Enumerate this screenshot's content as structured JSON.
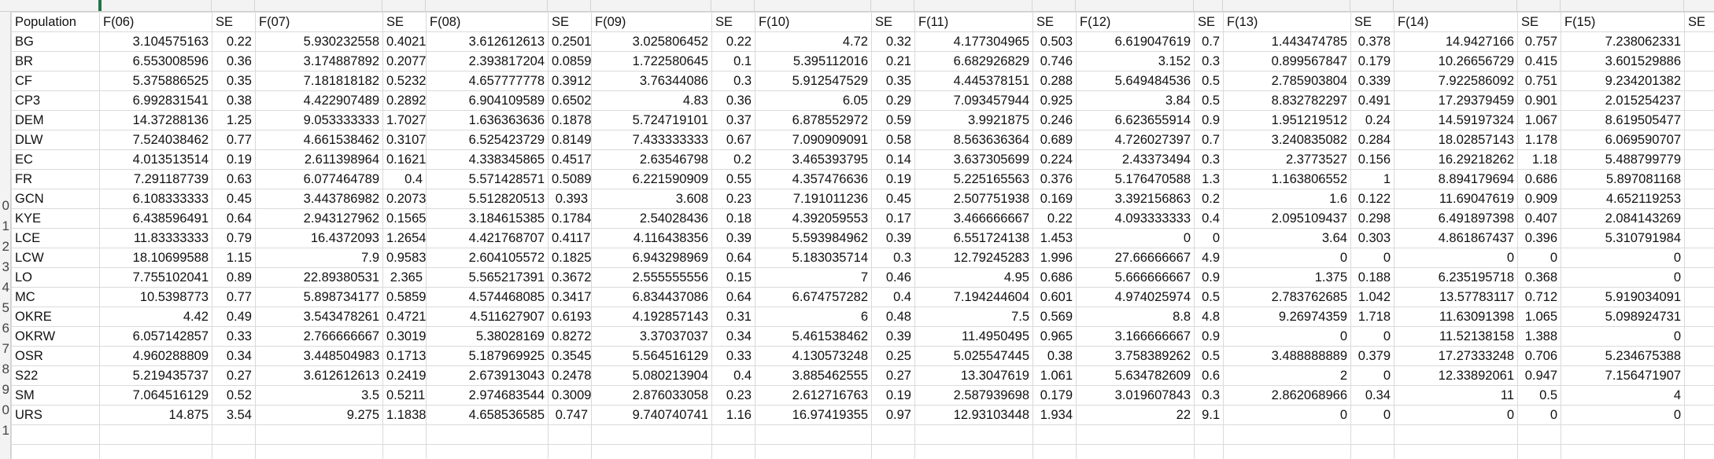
{
  "sheet": {
    "headers": [
      "Population",
      "F(06)",
      "SE",
      "F(07)",
      "SE",
      "F(08)",
      "SE",
      "F(09)",
      "SE",
      "F(10)",
      "SE",
      "F(11)",
      "SE",
      "F(12)",
      "SE",
      "F(13)",
      "SE",
      "F(14)",
      "SE",
      "F(15)",
      "SE"
    ],
    "row_numbers": [
      "",
      "",
      "",
      "",
      "",
      "",
      "",
      "",
      "",
      "0",
      "1",
      "2",
      "3",
      "4",
      "5",
      "6",
      "7",
      "8",
      "9",
      "0",
      "1",
      "",
      ""
    ],
    "rows": [
      [
        "BG",
        "3.104575163",
        "0.22",
        "5.930232558",
        "0.4021",
        "3.612612613",
        "0.2501",
        "3.025806452",
        "0.22",
        "4.72",
        "0.32",
        "4.177304965",
        "0.503",
        "6.619047619",
        "0.7",
        "1.443474785",
        "0.378",
        "14.9427166",
        "0.757",
        "7.238062331",
        ""
      ],
      [
        "BR",
        "6.553008596",
        "0.36",
        "3.174887892",
        "0.2077",
        "2.393817204",
        "0.0859",
        "1.722580645",
        "0.1",
        "5.395112016",
        "0.21",
        "6.682926829",
        "0.746",
        "3.152",
        "0.3",
        "0.899567847",
        "0.179",
        "10.26656729",
        "0.415",
        "3.601529886",
        ""
      ],
      [
        "CF",
        "5.375886525",
        "0.35",
        "7.181818182",
        "0.5232",
        "4.657777778",
        "0.3912",
        "3.76344086",
        "0.3",
        "5.912547529",
        "0.35",
        "4.445378151",
        "0.288",
        "5.649484536",
        "0.5",
        "2.785903804",
        "0.339",
        "7.922586092",
        "0.751",
        "9.234201382",
        ""
      ],
      [
        "CP3",
        "6.992831541",
        "0.38",
        "4.422907489",
        "0.2892",
        "6.904109589",
        "0.6502",
        "4.83",
        "0.36",
        "6.05",
        "0.29",
        "7.093457944",
        "0.925",
        "3.84",
        "0.5",
        "8.832782297",
        "0.491",
        "17.29379459",
        "0.901",
        "2.015254237",
        ""
      ],
      [
        "DEM",
        "14.37288136",
        "1.25",
        "9.053333333",
        "1.7027",
        "1.636363636",
        "0.1878",
        "5.724719101",
        "0.37",
        "6.878552972",
        "0.59",
        "3.9921875",
        "0.246",
        "6.623655914",
        "0.9",
        "1.951219512",
        "0.24",
        "14.59197324",
        "1.067",
        "8.619505477",
        ""
      ],
      [
        "DLW",
        "7.524038462",
        "0.77",
        "4.661538462",
        "0.3107",
        "6.525423729",
        "0.8149",
        "7.433333333",
        "0.67",
        "7.090909091",
        "0.58",
        "8.563636364",
        "0.689",
        "4.726027397",
        "0.7",
        "3.240835082",
        "0.284",
        "18.02857143",
        "1.178",
        "6.069590707",
        ""
      ],
      [
        "EC",
        "4.013513514",
        "0.19",
        "2.611398964",
        "0.1621",
        "4.338345865",
        "0.4517",
        "2.63546798",
        "0.2",
        "3.465393795",
        "0.14",
        "3.637305699",
        "0.224",
        "2.43373494",
        "0.3",
        "2.3773527",
        "0.156",
        "16.29218262",
        "1.18",
        "5.488799779",
        ""
      ],
      [
        "FR",
        "7.291187739",
        "0.63",
        "6.077464789",
        "0.4",
        "5.571428571",
        "0.5089",
        "6.221590909",
        "0.55",
        "4.357476636",
        "0.19",
        "5.225165563",
        "0.376",
        "5.176470588",
        "1.3",
        "1.163806552",
        "1",
        "8.894179694",
        "0.686",
        "5.897081168",
        ""
      ],
      [
        "GCN",
        "6.108333333",
        "0.45",
        "3.443786982",
        "0.2073",
        "5.512820513",
        "0.393",
        "3.608",
        "0.23",
        "7.191011236",
        "0.45",
        "2.507751938",
        "0.169",
        "3.392156863",
        "0.2",
        "1.6",
        "0.122",
        "11.69047619",
        "0.909",
        "4.652119253",
        ""
      ],
      [
        "KYE",
        "6.438596491",
        "0.64",
        "2.943127962",
        "0.1565",
        "3.184615385",
        "0.1784",
        "2.54028436",
        "0.18",
        "4.392059553",
        "0.17",
        "3.466666667",
        "0.22",
        "4.093333333",
        "0.4",
        "2.095109437",
        "0.298",
        "6.491897398",
        "0.407",
        "2.084143269",
        ""
      ],
      [
        "LCE",
        "11.83333333",
        "0.79",
        "16.4372093",
        "1.2654",
        "4.421768707",
        "0.4117",
        "4.116438356",
        "0.39",
        "5.593984962",
        "0.39",
        "6.551724138",
        "1.453",
        "0",
        "0",
        "3.64",
        "0.303",
        "4.861867437",
        "0.396",
        "5.310791984",
        ""
      ],
      [
        "LCW",
        "18.10699588",
        "1.15",
        "7.9",
        "0.9583",
        "2.604105572",
        "0.1825",
        "6.943298969",
        "0.64",
        "5.183035714",
        "0.3",
        "12.79245283",
        "1.996",
        "27.66666667",
        "4.9",
        "0",
        "0",
        "0",
        "0",
        "0",
        ""
      ],
      [
        "LO",
        "7.755102041",
        "0.89",
        "22.89380531",
        "2.365",
        "5.565217391",
        "0.3672",
        "2.555555556",
        "0.15",
        "7",
        "0.46",
        "4.95",
        "0.686",
        "5.666666667",
        "0.9",
        "1.375",
        "0.188",
        "6.235195718",
        "0.368",
        "0",
        ""
      ],
      [
        "MC",
        "10.5398773",
        "0.77",
        "5.898734177",
        "0.5859",
        "4.574468085",
        "0.3417",
        "6.834437086",
        "0.64",
        "6.674757282",
        "0.4",
        "7.194244604",
        "0.601",
        "4.974025974",
        "0.5",
        "2.783762685",
        "1.042",
        "13.57783117",
        "0.712",
        "5.919034091",
        ""
      ],
      [
        "OKRE",
        "4.42",
        "0.49",
        "3.543478261",
        "0.4721",
        "4.511627907",
        "0.6193",
        "4.192857143",
        "0.31",
        "6",
        "0.48",
        "7.5",
        "0.569",
        "8.8",
        "4.8",
        "9.26974359",
        "1.718",
        "11.63091398",
        "1.065",
        "5.098924731",
        ""
      ],
      [
        "OKRW",
        "6.057142857",
        "0.33",
        "2.766666667",
        "0.3019",
        "5.38028169",
        "0.8272",
        "3.37037037",
        "0.34",
        "5.461538462",
        "0.39",
        "11.4950495",
        "0.965",
        "3.166666667",
        "0.9",
        "0",
        "0",
        "11.52138158",
        "1.388",
        "0",
        ""
      ],
      [
        "OSR",
        "4.960288809",
        "0.34",
        "3.448504983",
        "0.1713",
        "5.187969925",
        "0.3545",
        "5.564516129",
        "0.33",
        "4.130573248",
        "0.25",
        "5.025547445",
        "0.38",
        "3.758389262",
        "0.5",
        "3.488888889",
        "0.379",
        "17.27333248",
        "0.706",
        "5.234675388",
        ""
      ],
      [
        "S22",
        "5.219435737",
        "0.27",
        "3.612612613",
        "0.2419",
        "2.673913043",
        "0.2478",
        "5.080213904",
        "0.4",
        "3.885462555",
        "0.27",
        "13.3047619",
        "1.061",
        "5.634782609",
        "0.6",
        "2",
        "0",
        "12.33892061",
        "0.947",
        "7.156471907",
        ""
      ],
      [
        "SM",
        "7.064516129",
        "0.52",
        "3.5",
        "0.5211",
        "2.974683544",
        "0.3009",
        "2.876033058",
        "0.23",
        "2.612716763",
        "0.19",
        "2.587939698",
        "0.179",
        "3.019607843",
        "0.3",
        "2.862068966",
        "0.34",
        "11",
        "0.5",
        "4",
        ""
      ],
      [
        "URS",
        "14.875",
        "3.54",
        "9.275",
        "1.1838",
        "4.658536585",
        "0.747",
        "9.740740741",
        "1.16",
        "16.97419355",
        "0.97",
        "12.93103448",
        "1.934",
        "22",
        "9.1",
        "0",
        "0",
        "0",
        "0",
        "0",
        ""
      ]
    ]
  },
  "colors": {
    "accent": "#217346",
    "gridline": "#dadada",
    "header_bg": "#f3f3f3"
  }
}
